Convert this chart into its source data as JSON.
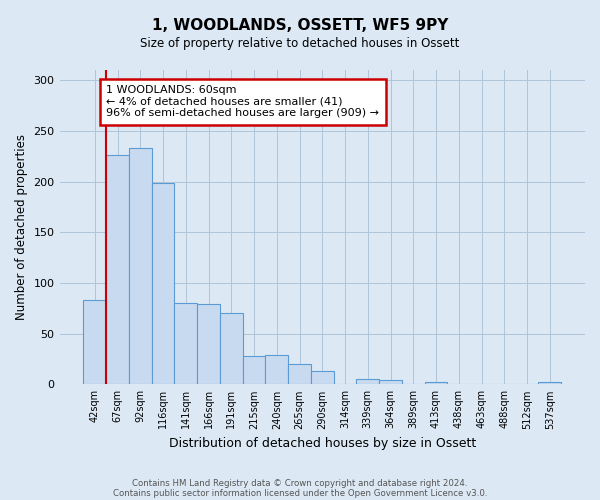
{
  "title": "1, WOODLANDS, OSSETT, WF5 9PY",
  "subtitle": "Size of property relative to detached houses in Ossett",
  "xlabel": "Distribution of detached houses by size in Ossett",
  "ylabel": "Number of detached properties",
  "bar_labels": [
    "42sqm",
    "67sqm",
    "92sqm",
    "116sqm",
    "141sqm",
    "166sqm",
    "191sqm",
    "215sqm",
    "240sqm",
    "265sqm",
    "290sqm",
    "314sqm",
    "339sqm",
    "364sqm",
    "389sqm",
    "413sqm",
    "438sqm",
    "463sqm",
    "488sqm",
    "512sqm",
    "537sqm"
  ],
  "bar_values": [
    83,
    226,
    233,
    199,
    80,
    79,
    70,
    28,
    29,
    20,
    13,
    0,
    5,
    4,
    0,
    2,
    0,
    0,
    0,
    0,
    2
  ],
  "bar_color": "#c8daf0",
  "bar_edge_color": "#5b9bd5",
  "annotation_box_text": "1 WOODLANDS: 60sqm\n← 4% of detached houses are smaller (41)\n96% of semi-detached houses are larger (909) →",
  "annotation_box_color": "#ffffff",
  "annotation_box_edge_color": "#cc0000",
  "vline_color": "#cc0000",
  "vline_x": 0.5,
  "ylim": [
    0,
    310
  ],
  "yticks": [
    0,
    50,
    100,
    150,
    200,
    250,
    300
  ],
  "grid_color": "#b0c4d8",
  "background_color": "#dce9f5",
  "plot_bg_color": "#dce9f5",
  "footer_line1": "Contains HM Land Registry data © Crown copyright and database right 2024.",
  "footer_line2": "Contains public sector information licensed under the Open Government Licence v3.0."
}
